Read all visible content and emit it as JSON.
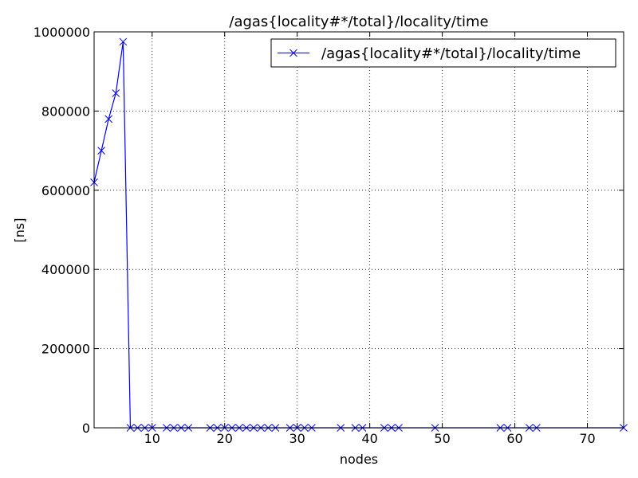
{
  "chart_data": {
    "type": "line",
    "title": "/agas{locality#*/total}/locality/time",
    "xlabel": "nodes",
    "ylabel": "[ns]",
    "xlim": [
      2,
      75
    ],
    "ylim": [
      0,
      1000000
    ],
    "xticks": [
      10,
      20,
      30,
      40,
      50,
      60,
      70
    ],
    "yticks": [
      0,
      200000,
      400000,
      600000,
      800000,
      1000000
    ],
    "grid": true,
    "legend_position": "top-right",
    "series": [
      {
        "name": "/agas{locality#*/total}/locality/time",
        "color": "#0000ff",
        "marker": "x",
        "x": [
          2,
          3,
          4,
          5,
          6,
          7,
          8,
          9,
          10,
          12,
          13,
          14,
          15,
          18,
          19,
          20,
          21,
          22,
          23,
          24,
          25,
          26,
          27,
          29,
          30,
          31,
          32,
          36,
          38,
          39,
          42,
          43,
          44,
          49,
          58,
          59,
          62,
          63,
          75
        ],
        "y": [
          620000,
          700000,
          780000,
          845000,
          975000,
          0,
          0,
          0,
          0,
          0,
          0,
          0,
          0,
          0,
          0,
          0,
          0,
          0,
          0,
          0,
          0,
          0,
          0,
          0,
          0,
          0,
          0,
          0,
          0,
          0,
          0,
          0,
          0,
          0,
          0,
          0,
          0,
          0,
          0
        ]
      }
    ]
  }
}
